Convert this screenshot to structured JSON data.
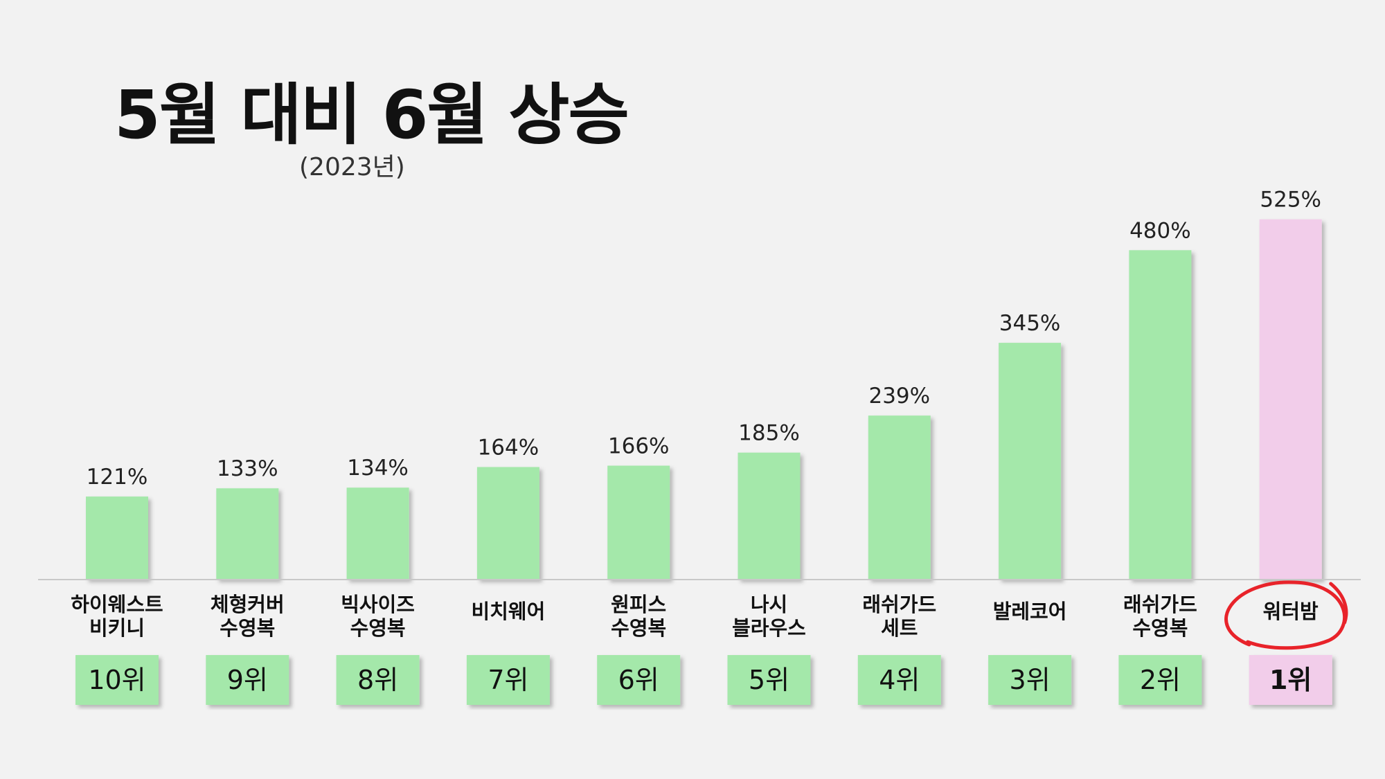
{
  "title": "5월 대비 6월 상승",
  "subtitle": "(2023년)",
  "colors": {
    "bar": "#a4e8aa",
    "highlight": "#f2cdea",
    "circle": "#e8232a",
    "baseline": "#c8c8c8"
  },
  "chart_data": {
    "type": "bar",
    "title": "5월 대비 6월 상승",
    "subtitle": "(2023년)",
    "categories": [
      [
        "하이웨스트",
        "비키니"
      ],
      [
        "체형커버",
        "수영복"
      ],
      [
        "빅사이즈",
        "수영복"
      ],
      [
        "비치웨어"
      ],
      [
        "원피스",
        "수영복"
      ],
      [
        "나시",
        "블라우스"
      ],
      [
        "래쉬가드",
        "세트"
      ],
      [
        "발레코어"
      ],
      [
        "래쉬가드",
        "수영복"
      ],
      [
        "워터밤"
      ]
    ],
    "values": [
      121,
      133,
      134,
      164,
      166,
      185,
      239,
      345,
      480,
      525
    ],
    "value_labels": [
      "121%",
      "133%",
      "134%",
      "164%",
      "166%",
      "185%",
      "239%",
      "345%",
      "480%",
      "525%"
    ],
    "ranks": [
      "10위",
      "9위",
      "8위",
      "7위",
      "6위",
      "5위",
      "4위",
      "3위",
      "2위",
      "1위"
    ],
    "highlight_index": 9,
    "xlabel": "",
    "ylabel": "",
    "grid": false
  }
}
